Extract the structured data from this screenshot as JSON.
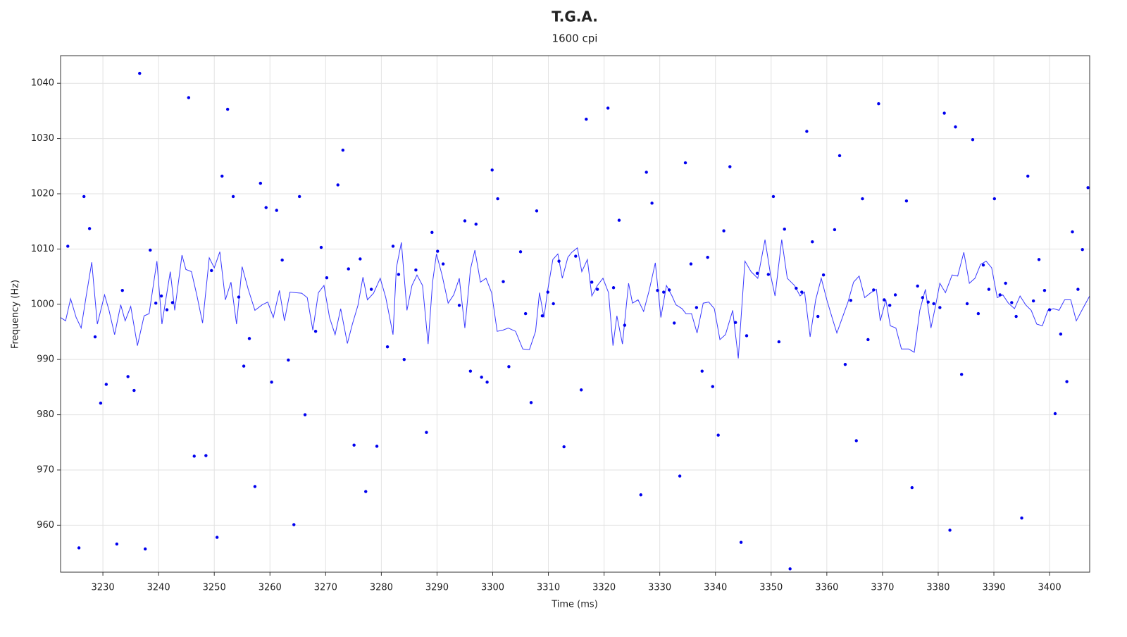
{
  "chart_data": {
    "type": "scatter",
    "title": "T.G.A.",
    "subtitle": "1600 cpi",
    "x_label": "Time (ms)",
    "y_label": "Frequency (Hz)",
    "xlim": [
      3222.4,
      3407.2
    ],
    "ylim": [
      951.5,
      1045
    ],
    "xticks": [
      3230,
      3240,
      3250,
      3260,
      3270,
      3280,
      3290,
      3300,
      3310,
      3320,
      3330,
      3340,
      3350,
      3360,
      3370,
      3380,
      3390,
      3400
    ],
    "yticks": [
      960,
      970,
      980,
      990,
      1000,
      1010,
      1020,
      1030,
      1040
    ],
    "grid": true,
    "series": [
      {
        "type": "line",
        "color": "#3a3aff",
        "x": [
          3222.4,
          3223.3,
          3224.2,
          3225.2,
          3226.1,
          3227.0,
          3228.0,
          3229.0,
          3230.3,
          3231.1,
          3232.1,
          3233.2,
          3234.0,
          3235.0,
          3236.2,
          3237.4,
          3238.3,
          3239.7,
          3240.6,
          3241.4,
          3242.1,
          3242.9,
          3244.2,
          3244.9,
          3245.9,
          3246.9,
          3247.9,
          3249.1,
          3250.0,
          3251.0,
          3252.0,
          3253.0,
          3254.0,
          3255.0,
          3256.1,
          3257.3,
          3258.6,
          3259.6,
          3260.6,
          3261.7,
          3262.6,
          3263.6,
          3264.6,
          3265.7,
          3266.7,
          3267.7,
          3268.7,
          3269.7,
          3270.7,
          3271.7,
          3272.7,
          3273.9,
          3274.8,
          3275.8,
          3276.7,
          3277.5,
          3278.6,
          3279.8,
          3280.8,
          3282.1,
          3282.7,
          3283.6,
          3284.6,
          3285.5,
          3286.4,
          3287.4,
          3288.4,
          3289.2,
          3289.9,
          3290.9,
          3292.0,
          3293.0,
          3294.0,
          3295.0,
          3296.0,
          3296.8,
          3297.8,
          3298.8,
          3299.8,
          3300.8,
          3301.8,
          3302.8,
          3304.1,
          3305.4,
          3306.6,
          3307.7,
          3308.4,
          3309.2,
          3309.9,
          3310.8,
          3311.7,
          3312.5,
          3313.5,
          3314.2,
          3315.2,
          3316.0,
          3317.0,
          3317.8,
          3318.8,
          3319.8,
          3320.8,
          3321.6,
          3322.3,
          3323.3,
          3324.4,
          3325.1,
          3326.1,
          3327.1,
          3328.1,
          3329.2,
          3330.2,
          3331.2,
          3332.2,
          3332.9,
          3334.0,
          3334.7,
          3335.7,
          3336.7,
          3337.8,
          3338.8,
          3339.8,
          3340.8,
          3341.8,
          3343.1,
          3344.1,
          3345.3,
          3346.4,
          3347.6,
          3348.9,
          3349.9,
          3350.7,
          3351.9,
          3352.9,
          3354.2,
          3355.2,
          3356.0,
          3357.0,
          3358.0,
          3359.0,
          3360.0,
          3361.0,
          3361.8,
          3362.8,
          3363.8,
          3364.8,
          3365.8,
          3366.8,
          3367.9,
          3368.9,
          3369.6,
          3370.6,
          3371.4,
          3372.4,
          3373.4,
          3374.7,
          3375.7,
          3376.7,
          3377.7,
          3378.7,
          3379.5,
          3380.3,
          3381.3,
          3382.5,
          3383.5,
          3384.6,
          3385.6,
          3386.6,
          3387.6,
          3388.6,
          3389.6,
          3390.6,
          3391.6,
          3392.6,
          3393.7,
          3394.7,
          3395.7,
          3396.7,
          3397.7,
          3398.7,
          3399.7,
          3400.7,
          3401.7,
          3402.7,
          3403.8,
          3404.8,
          3405.8,
          3407.2
        ],
        "values": [
          997.6,
          997.0,
          1001.0,
          997.6,
          995.7,
          1001.5,
          1007.6,
          996.4,
          1001.7,
          998.9,
          994.5,
          999.9,
          997.0,
          999.6,
          992.5,
          997.9,
          998.3,
          1007.8,
          996.4,
          1001.5,
          1005.9,
          998.9,
          1008.9,
          1006.3,
          1005.9,
          1001.5,
          996.6,
          1008.4,
          1006.6,
          1009.5,
          1000.8,
          1004.0,
          996.4,
          1006.8,
          1002.7,
          998.9,
          999.9,
          1000.4,
          997.6,
          1002.5,
          997.0,
          1002.2,
          1002.1,
          1002.0,
          1001.2,
          995.3,
          1002.1,
          1003.4,
          997.6,
          994.5,
          999.2,
          992.9,
          996.4,
          999.8,
          1004.9,
          1000.8,
          1002.0,
          1004.7,
          1001.2,
          994.5,
          1006.6,
          1011.2,
          998.9,
          1003.4,
          1005.3,
          1003.4,
          992.8,
          1004.0,
          1009.1,
          1005.3,
          1000.2,
          1001.7,
          1004.7,
          995.7,
          1006.3,
          1009.8,
          1004.0,
          1004.7,
          1002.1,
          995.1,
          995.3,
          995.7,
          995.1,
          991.9,
          991.8,
          995.1,
          1002.1,
          997.6,
          1002.7,
          1008.1,
          1009.1,
          1004.7,
          1008.5,
          1009.4,
          1010.2,
          1005.9,
          1008.1,
          1001.5,
          1003.4,
          1004.7,
          1002.1,
          992.5,
          997.9,
          992.8,
          1003.8,
          1000.2,
          1000.8,
          998.7,
          1002.5,
          1007.5,
          997.6,
          1003.4,
          1001.5,
          999.9,
          999.2,
          998.3,
          998.3,
          994.8,
          1000.2,
          1000.4,
          999.2,
          993.6,
          994.5,
          998.9,
          990.2,
          1007.8,
          1005.9,
          1004.7,
          1011.7,
          1005.3,
          1001.5,
          1011.7,
          1004.7,
          1003.4,
          1001.5,
          1002.2,
          994.1,
          1000.8,
          1004.7,
          1000.8,
          997.4,
          994.8,
          997.6,
          1000.4,
          1004.0,
          1005.1,
          1001.2,
          1002.1,
          1002.7,
          997.0,
          1000.8,
          996.1,
          995.7,
          991.9,
          991.9,
          991.3,
          998.9,
          1002.7,
          995.7,
          999.6,
          1003.8,
          1002.1,
          1005.3,
          1005.1,
          1009.4,
          1003.8,
          1004.7,
          1007.2,
          1007.8,
          1006.6,
          1001.2,
          1001.7,
          1000.2,
          999.2,
          1001.5,
          999.9,
          998.9,
          996.4,
          996.1,
          998.9,
          999.2,
          998.9,
          1000.8,
          1000.8,
          997.0,
          998.9,
          1001.5
        ]
      },
      {
        "type": "scatter",
        "color": "#0000ee",
        "x": [
          3223.7,
          3225.7,
          3226.6,
          3227.6,
          3228.6,
          3229.6,
          3230.6,
          3232.5,
          3233.5,
          3234.5,
          3235.6,
          3236.6,
          3237.6,
          3238.5,
          3239.5,
          3240.5,
          3241.5,
          3242.5,
          3245.4,
          3246.4,
          3248.5,
          3249.5,
          3250.5,
          3251.4,
          3252.4,
          3253.4,
          3254.4,
          3255.3,
          3256.3,
          3257.3,
          3258.3,
          3259.3,
          3260.3,
          3261.2,
          3262.2,
          3263.3,
          3264.3,
          3265.3,
          3266.3,
          3268.2,
          3269.2,
          3270.2,
          3272.2,
          3273.1,
          3274.1,
          3275.1,
          3276.2,
          3277.2,
          3278.2,
          3279.2,
          3281.1,
          3282.1,
          3283.1,
          3284.1,
          3286.2,
          3288.1,
          3289.1,
          3290.1,
          3291.1,
          3294.0,
          3295.0,
          3296.0,
          3297.0,
          3298.0,
          3299.0,
          3299.9,
          3300.9,
          3301.9,
          3302.9,
          3305.0,
          3305.9,
          3306.9,
          3307.9,
          3308.9,
          3309.9,
          3310.9,
          3311.9,
          3312.8,
          3314.9,
          3315.9,
          3316.8,
          3317.8,
          3318.8,
          3320.7,
          3321.7,
          3322.7,
          3323.7,
          3326.6,
          3327.6,
          3328.6,
          3329.6,
          3330.7,
          3331.7,
          3332.6,
          3333.6,
          3334.6,
          3335.6,
          3336.6,
          3337.6,
          3338.6,
          3339.5,
          3340.5,
          3341.5,
          3342.6,
          3343.6,
          3344.6,
          3345.6,
          3347.5,
          3349.5,
          3350.4,
          3351.4,
          3352.4,
          3353.4,
          3354.5,
          3355.5,
          3356.4,
          3357.4,
          3358.4,
          3359.4,
          3361.4,
          3362.3,
          3363.3,
          3364.3,
          3365.3,
          3366.4,
          3367.4,
          3368.4,
          3369.3,
          3370.3,
          3371.3,
          3372.3,
          3374.3,
          3375.3,
          3376.3,
          3377.2,
          3378.2,
          3379.2,
          3380.3,
          3381.1,
          3382.1,
          3383.1,
          3384.2,
          3385.2,
          3386.2,
          3387.2,
          3388.1,
          3389.1,
          3390.1,
          3391.1,
          3392.1,
          3393.2,
          3394.0,
          3395.0,
          3396.1,
          3397.1,
          3398.1,
          3399.1,
          3400.0,
          3401.0,
          3402.0,
          3403.1,
          3404.1,
          3405.1,
          3405.9,
          3406.9
        ],
        "values": [
          1010.5,
          955.9,
          1019.5,
          1013.7,
          994.1,
          982.1,
          985.5,
          956.6,
          1002.5,
          986.9,
          984.4,
          1041.8,
          955.7,
          1009.8,
          1000.2,
          1001.5,
          999.0,
          1000.3,
          1037.4,
          972.5,
          972.6,
          1006.1,
          957.8,
          1023.2,
          1035.3,
          1019.5,
          1001.3,
          988.8,
          993.8,
          967.0,
          1021.9,
          1017.5,
          985.9,
          1017.0,
          1008.0,
          989.9,
          960.1,
          1019.5,
          980.0,
          995.1,
          1010.3,
          1004.8,
          1021.6,
          1027.9,
          1006.4,
          974.5,
          1008.2,
          966.1,
          1002.7,
          974.3,
          992.3,
          1010.5,
          1005.4,
          990.0,
          1006.2,
          976.8,
          1013.0,
          1009.6,
          1007.3,
          999.8,
          1015.1,
          987.9,
          1014.5,
          986.8,
          985.9,
          1024.3,
          1019.1,
          1004.1,
          988.7,
          1009.5,
          998.3,
          982.2,
          1016.9,
          997.9,
          1002.2,
          1000.1,
          1007.8,
          974.2,
          1008.7,
          984.5,
          1033.5,
          1004.0,
          1002.7,
          1035.5,
          1003.0,
          1015.2,
          996.2,
          965.5,
          1023.9,
          1018.3,
          1002.5,
          1002.2,
          1002.6,
          996.6,
          968.9,
          1025.6,
          1007.3,
          999.4,
          987.9,
          1008.5,
          985.1,
          976.3,
          1013.3,
          1024.9,
          996.7,
          956.9,
          994.3,
          1005.6,
          1005.4,
          1019.5,
          993.2,
          1013.6,
          952.1,
          1002.9,
          1002.2,
          1031.3,
          1011.3,
          997.8,
          1005.3,
          1013.5,
          1026.9,
          989.1,
          1000.7,
          975.3,
          1019.1,
          993.6,
          1002.6,
          1036.3,
          1000.8,
          999.8,
          1001.7,
          1018.7,
          966.8,
          1003.3,
          1001.2,
          1000.4,
          1000.1,
          999.4,
          1034.6,
          959.1,
          1032.1,
          987.3,
          1000.1,
          1029.8,
          998.3,
          1007.1,
          1002.7,
          1019.1,
          1001.7,
          1003.8,
          1000.3,
          997.8,
          961.3,
          1023.2,
          1000.6,
          1008.1,
          1002.5,
          999.0,
          980.2,
          994.6,
          986.0,
          1013.1,
          1002.7,
          1009.9,
          1021.1
        ]
      }
    ]
  }
}
